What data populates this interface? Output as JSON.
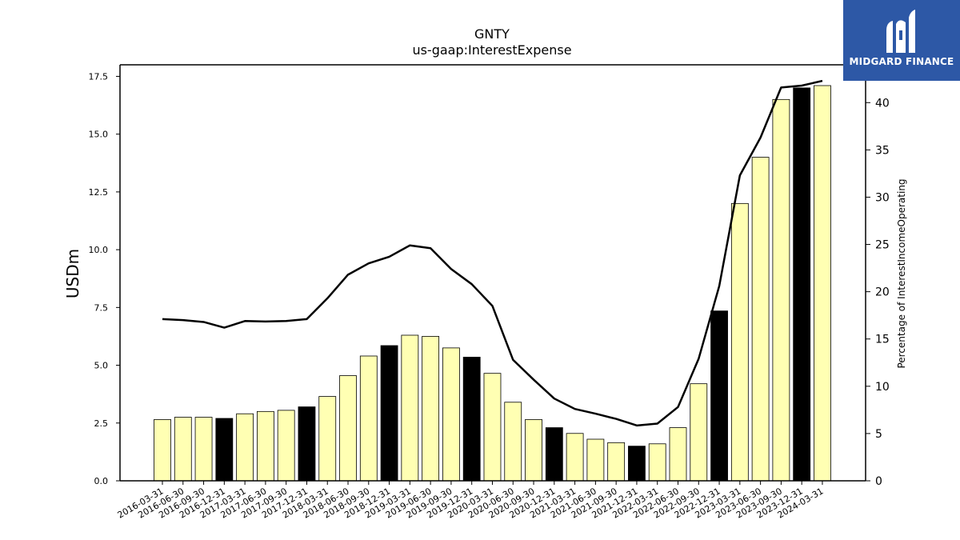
{
  "header": {
    "title": "GNTY",
    "subtitle": "us-gaap:InterestExpense"
  },
  "logo": {
    "text": "MIDGARD FINANCE",
    "icon": "midgard-logo-icon",
    "background": "#2d58a6"
  },
  "chart_data": {
    "type": "bar",
    "title": "GNTY",
    "subtitle": "us-gaap:InterestExpense",
    "ylabel": "USDm",
    "y2label": "Percentage of InterestIncomeOperating",
    "ylim": [
      0,
      18
    ],
    "y2lim": [
      0,
      44
    ],
    "yticks": [
      "0.0",
      "2.5",
      "5.0",
      "7.5",
      "10.0",
      "12.5",
      "15.0",
      "17.5"
    ],
    "y2ticks": [
      "0",
      "5",
      "10",
      "15",
      "20",
      "25",
      "30",
      "35",
      "40"
    ],
    "grid": false,
    "colors": {
      "bar_fill": "#ffffb3",
      "year_end_fill": "#000000",
      "line": "#000000"
    },
    "categories": [
      "2016-03-31",
      "2016-06-30",
      "2016-09-30",
      "2016-12-31",
      "2017-03-31",
      "2017-06-30",
      "2017-09-30",
      "2017-12-31",
      "2018-03-31",
      "2018-06-30",
      "2018-09-30",
      "2018-12-31",
      "2019-03-31",
      "2019-06-30",
      "2019-09-30",
      "2019-12-31",
      "2020-03-31",
      "2020-06-30",
      "2020-09-30",
      "2020-12-31",
      "2021-03-31",
      "2021-06-30",
      "2021-09-30",
      "2021-12-31",
      "2022-03-31",
      "2022-06-30",
      "2022-09-30",
      "2022-12-31",
      "2023-03-31",
      "2023-06-30",
      "2023-09-30",
      "2023-12-31",
      "2024-03-31"
    ],
    "series": [
      {
        "type": "bar",
        "values": [
          2.65,
          2.75,
          2.75,
          2.7,
          2.9,
          3.0,
          3.05,
          3.2,
          3.65,
          4.55,
          5.4,
          5.85,
          6.3,
          6.25,
          5.75,
          5.35,
          4.65,
          3.4,
          2.65,
          2.3,
          2.05,
          1.8,
          1.65,
          1.5,
          1.6,
          2.3,
          4.2,
          7.35,
          12.0,
          14.0,
          16.5,
          17.0,
          17.1
        ]
      },
      {
        "type": "line",
        "axis": "right",
        "values": [
          17.1,
          17.0,
          16.8,
          16.2,
          16.9,
          16.85,
          16.9,
          17.1,
          19.3,
          21.8,
          23.0,
          23.7,
          24.9,
          24.6,
          22.4,
          20.8,
          18.5,
          12.8,
          10.7,
          8.7,
          7.6,
          7.1,
          6.55,
          5.85,
          6.05,
          7.8,
          12.9,
          20.6,
          32.3,
          36.3,
          41.6,
          41.8,
          42.3
        ]
      }
    ]
  }
}
